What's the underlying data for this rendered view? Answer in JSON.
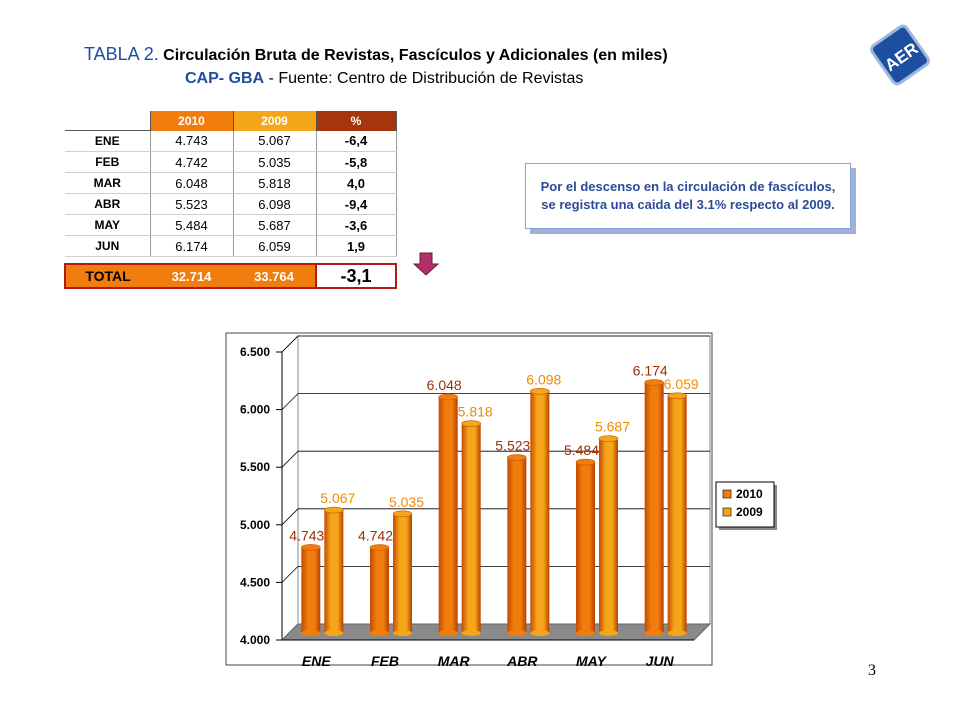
{
  "header": {
    "title_prefix": "TABLA 2.",
    "title_main": "Circulación Bruta de Revistas, Fascículos y Adicionales (en miles)",
    "subtitle_prefix": "CAP- GBA",
    "subtitle_rest": " - Fuente:  Centro de Distribución de Revistas"
  },
  "table": {
    "columns": [
      "2010",
      "2009",
      "%"
    ],
    "rows": [
      {
        "month": "ENE",
        "v2010": "4.743",
        "v2009": "5.067",
        "pct": "-6,4"
      },
      {
        "month": "FEB",
        "v2010": "4.742",
        "v2009": "5.035",
        "pct": "-5,8"
      },
      {
        "month": "MAR",
        "v2010": "6.048",
        "v2009": "5.818",
        "pct": "4,0"
      },
      {
        "month": "ABR",
        "v2010": "5.523",
        "v2009": "6.098",
        "pct": "-9,4"
      },
      {
        "month": "MAY",
        "v2010": "5.484",
        "v2009": "5.687",
        "pct": "-3,6"
      },
      {
        "month": "JUN",
        "v2010": "6.174",
        "v2009": "6.059",
        "pct": "1,9"
      }
    ],
    "total": {
      "label": "TOTAL",
      "v2010": "32.714",
      "v2009": "33.764",
      "pct": "-3,1"
    }
  },
  "callout": {
    "text": "Por el descenso en la circulación de fascículos, se registra una caida del 3.1% respecto al 2009."
  },
  "logo": {
    "text": "AER"
  },
  "page_number": "3",
  "colors": {
    "series_2010": "#f07d0d",
    "series_2009": "#f5a51a",
    "label_2010": "#9c2f06",
    "label_2009": "#f08c00",
    "title_blue": "#1f4e9e",
    "pct_header": "#a6350e",
    "total_border": "#b31b10",
    "arrow": "#b0306a"
  },
  "chart_data": {
    "type": "bar",
    "categories": [
      "ENE",
      "FEB",
      "MAR",
      "ABR",
      "MAY",
      "JUN"
    ],
    "series": [
      {
        "name": "2010",
        "values": [
          4743,
          4742,
          6048,
          5523,
          5484,
          6174
        ],
        "labels": [
          "4.743",
          "4.742",
          "6.048",
          "5.523",
          "5.484",
          "6.174"
        ]
      },
      {
        "name": "2009",
        "values": [
          5067,
          5035,
          5818,
          6098,
          5687,
          6059
        ],
        "labels": [
          "5.067",
          "5.035",
          "5.818",
          "6.098",
          "5.687",
          "6.059"
        ]
      }
    ],
    "ylim": [
      4000,
      6500
    ],
    "yticks": [
      4000,
      4500,
      5000,
      5500,
      6000,
      6500
    ],
    "ytick_labels": [
      "4.000",
      "4.500",
      "5.000",
      "5.500",
      "6.000",
      "6.500"
    ],
    "grid": true,
    "legend_position": "right",
    "three_d": true
  }
}
